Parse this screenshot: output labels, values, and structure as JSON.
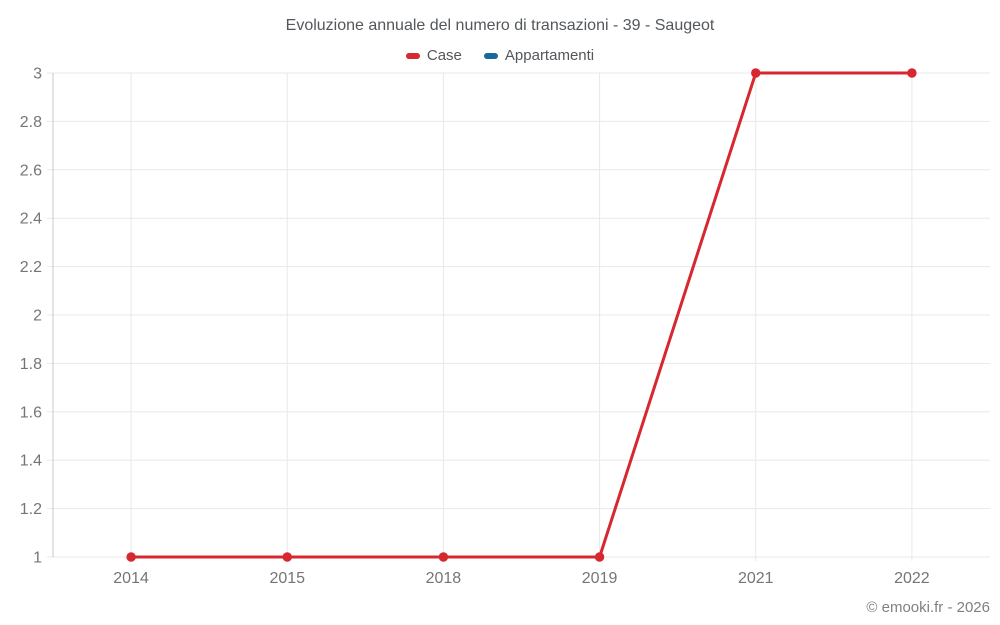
{
  "chart_data": {
    "type": "line",
    "title": "Evoluzione annuale del numero di transazioni - 39 - Saugeot",
    "xlabel": "",
    "ylabel": "",
    "categories": [
      "2014",
      "2015",
      "2018",
      "2019",
      "2021",
      "2022"
    ],
    "series": [
      {
        "name": "Case",
        "color": "#d6282e",
        "values": [
          1,
          1,
          1,
          1,
          3,
          3
        ]
      },
      {
        "name": "Appartamenti",
        "color": "#17699c",
        "values": []
      }
    ],
    "ylim": [
      1,
      3
    ],
    "yticks": [
      "1",
      "1.2",
      "1.4",
      "1.6",
      "1.8",
      "2",
      "2.2",
      "2.4",
      "2.6",
      "2.8",
      "3"
    ],
    "grid": true,
    "legend_position": "top",
    "marker_radius": 4.7,
    "line_width": 3
  },
  "colors": {
    "grid": "#e8e8e8",
    "axis": "#c9c9c9",
    "tick_text": "#757575",
    "title_text": "#53575b"
  },
  "footer": {
    "copyright": "© emooki.fr - 2026"
  }
}
